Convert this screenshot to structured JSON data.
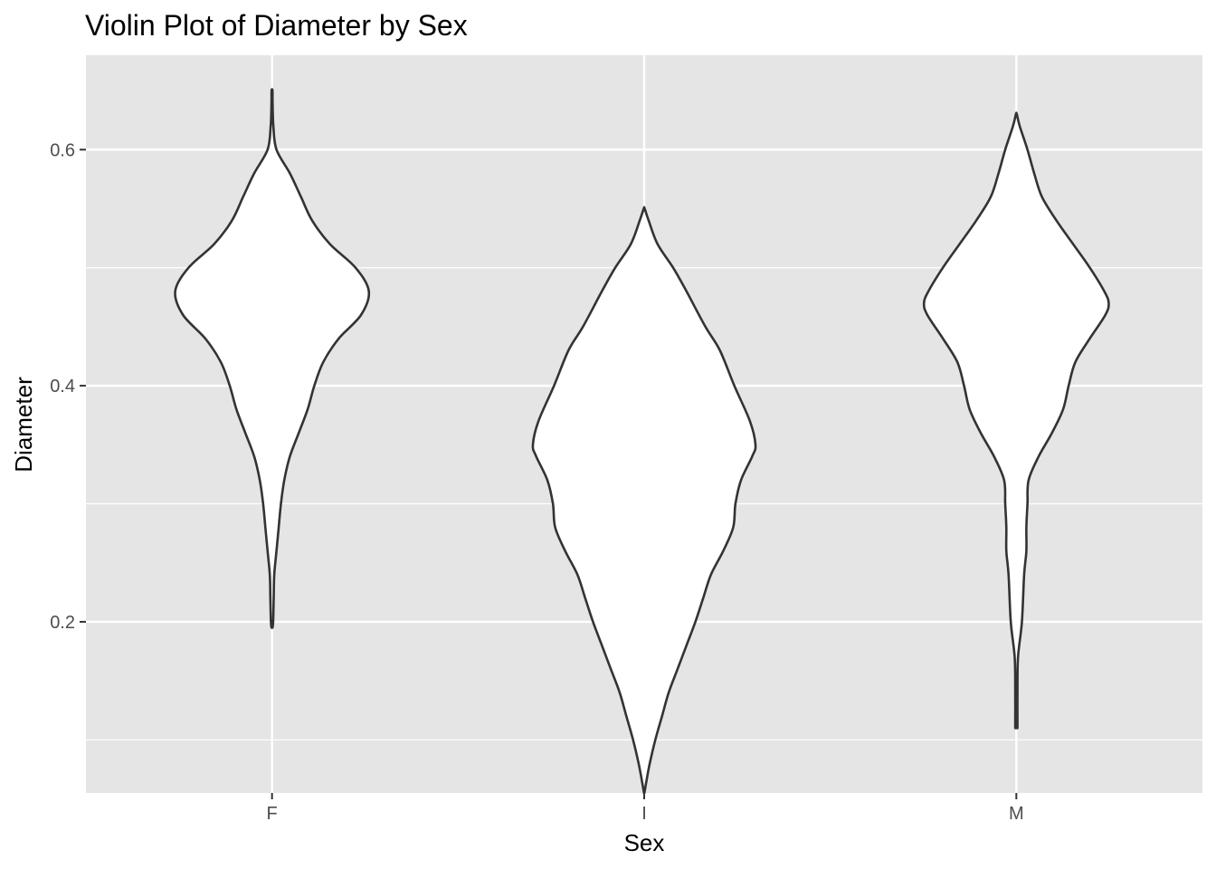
{
  "chart_data": {
    "type": "violin",
    "title": "Violin Plot of Diameter by Sex",
    "xlabel": "Sex",
    "ylabel": "Diameter",
    "categories": [
      "F",
      "I",
      "M"
    ],
    "ylim": [
      0.055,
      0.68
    ],
    "yticks": [
      0.2,
      0.4,
      0.6
    ],
    "yticks_labels": [
      "0.2",
      "0.4",
      "0.6"
    ],
    "grid": true,
    "colors": {
      "panel": "#e5e5e5",
      "grid": "#ffffff",
      "violin_fill": "#ffffff",
      "violin_stroke": "#333333"
    },
    "series": [
      {
        "category": "F",
        "min": 0.195,
        "max": 0.65,
        "density_profile": [
          [
            0.195,
            0.004
          ],
          [
            0.2,
            0.01
          ],
          [
            0.22,
            0.015
          ],
          [
            0.24,
            0.02
          ],
          [
            0.26,
            0.04
          ],
          [
            0.28,
            0.06
          ],
          [
            0.3,
            0.08
          ],
          [
            0.32,
            0.11
          ],
          [
            0.34,
            0.16
          ],
          [
            0.36,
            0.24
          ],
          [
            0.38,
            0.32
          ],
          [
            0.4,
            0.38
          ],
          [
            0.42,
            0.46
          ],
          [
            0.44,
            0.6
          ],
          [
            0.46,
            0.8
          ],
          [
            0.48,
            0.87
          ],
          [
            0.5,
            0.75
          ],
          [
            0.52,
            0.52
          ],
          [
            0.54,
            0.36
          ],
          [
            0.56,
            0.26
          ],
          [
            0.58,
            0.16
          ],
          [
            0.6,
            0.04
          ],
          [
            0.62,
            0.012
          ],
          [
            0.64,
            0.005
          ],
          [
            0.65,
            0.004
          ]
        ]
      },
      {
        "category": "I",
        "min": 0.055,
        "max": 0.55,
        "density_profile": [
          [
            0.055,
            0.002
          ],
          [
            0.065,
            0.02
          ],
          [
            0.08,
            0.05
          ],
          [
            0.1,
            0.1
          ],
          [
            0.12,
            0.16
          ],
          [
            0.14,
            0.22
          ],
          [
            0.16,
            0.3
          ],
          [
            0.18,
            0.38
          ],
          [
            0.2,
            0.46
          ],
          [
            0.22,
            0.53
          ],
          [
            0.24,
            0.6
          ],
          [
            0.26,
            0.71
          ],
          [
            0.28,
            0.8
          ],
          [
            0.3,
            0.82
          ],
          [
            0.32,
            0.87
          ],
          [
            0.34,
            0.97
          ],
          [
            0.35,
            1.0
          ],
          [
            0.37,
            0.95
          ],
          [
            0.4,
            0.81
          ],
          [
            0.43,
            0.68
          ],
          [
            0.45,
            0.55
          ],
          [
            0.48,
            0.38
          ],
          [
            0.5,
            0.26
          ],
          [
            0.52,
            0.12
          ],
          [
            0.54,
            0.04
          ],
          [
            0.55,
            0.004
          ]
        ]
      },
      {
        "category": "M",
        "min": 0.11,
        "max": 0.63,
        "density_profile": [
          [
            0.11,
            0.01
          ],
          [
            0.14,
            0.01
          ],
          [
            0.17,
            0.015
          ],
          [
            0.2,
            0.05
          ],
          [
            0.24,
            0.07
          ],
          [
            0.26,
            0.09
          ],
          [
            0.28,
            0.09
          ],
          [
            0.3,
            0.1
          ],
          [
            0.32,
            0.11
          ],
          [
            0.34,
            0.2
          ],
          [
            0.36,
            0.32
          ],
          [
            0.38,
            0.42
          ],
          [
            0.4,
            0.47
          ],
          [
            0.42,
            0.53
          ],
          [
            0.44,
            0.66
          ],
          [
            0.46,
            0.8
          ],
          [
            0.47,
            0.83
          ],
          [
            0.48,
            0.79
          ],
          [
            0.5,
            0.66
          ],
          [
            0.52,
            0.51
          ],
          [
            0.54,
            0.36
          ],
          [
            0.56,
            0.23
          ],
          [
            0.58,
            0.16
          ],
          [
            0.6,
            0.1
          ],
          [
            0.62,
            0.03
          ],
          [
            0.63,
            0.004
          ]
        ]
      }
    ]
  }
}
